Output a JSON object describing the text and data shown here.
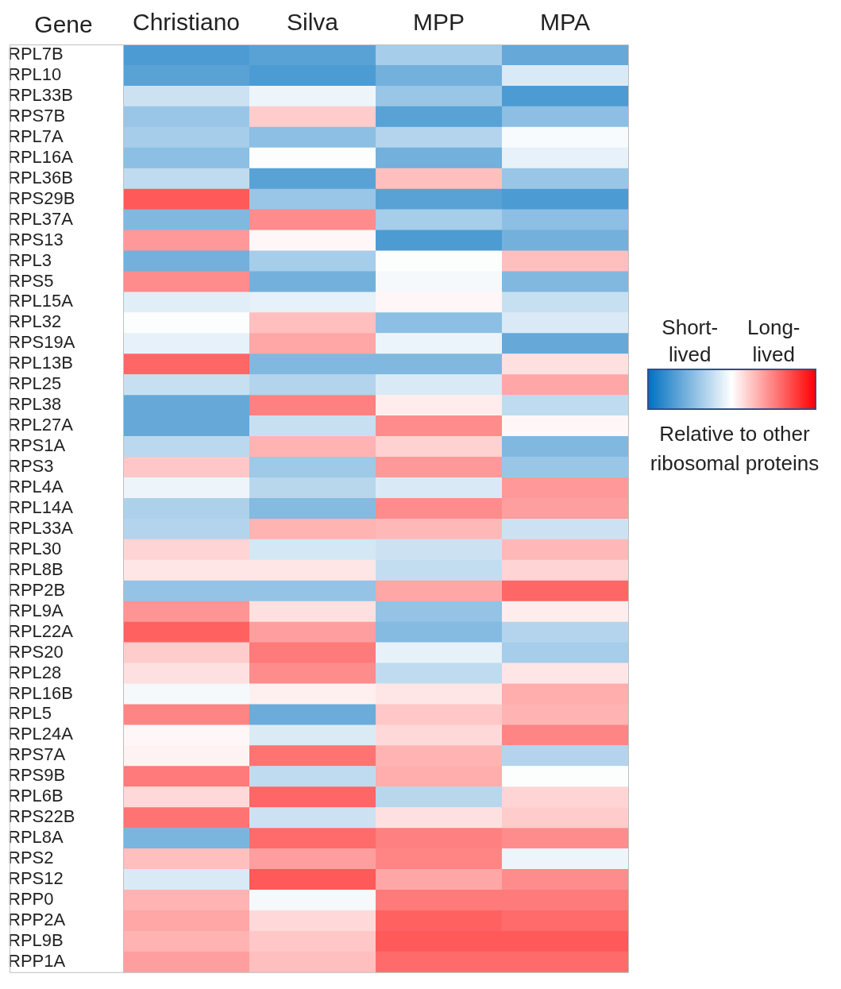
{
  "chart_data": {
    "type": "heatmap",
    "ylabel": "Gene",
    "clabel": "Relative to other ribosomal proteins",
    "categories": [
      "Christiano",
      "Silva",
      "MPP",
      "MPA"
    ],
    "y_categories": [
      "RPL7B",
      "RPL10",
      "RPL33B",
      "RPS7B",
      "RPL7A",
      "RPL16A",
      "RPL36B",
      "RPS29B",
      "RPL37A",
      "RPS13",
      "RPL3",
      "RPS5",
      "RPL15A",
      "RPL32",
      "RPS19A",
      "RPL13B",
      "RPL25",
      "RPL38",
      "RPL27A",
      "RPS1A",
      "RPS3",
      "RPL4A",
      "RPL14A",
      "RPL33A",
      "RPL30",
      "RPL8B",
      "RPP2B",
      "RPL9A",
      "RPL22A",
      "RPS20",
      "RPL28",
      "RPL16B",
      "RPL5",
      "RPL24A",
      "RPS7A",
      "RPS9B",
      "RPL6B",
      "RPS22B",
      "RPL8A",
      "RPS2",
      "RPS12",
      "RPP0",
      "RPP2A",
      "RPL9B",
      "RPP1A"
    ],
    "cells": [
      [
        -0.7,
        -0.65,
        -0.35,
        -0.6
      ],
      [
        -0.65,
        -0.7,
        -0.55,
        -0.15
      ],
      [
        -0.2,
        -0.07,
        -0.4,
        -0.7
      ],
      [
        -0.4,
        0.2,
        -0.65,
        -0.45
      ],
      [
        -0.35,
        -0.45,
        -0.3,
        -0.03
      ],
      [
        -0.45,
        -0.01,
        -0.55,
        -0.1
      ],
      [
        -0.25,
        -0.65,
        0.25,
        -0.4
      ],
      [
        0.65,
        -0.4,
        -0.65,
        -0.7
      ],
      [
        -0.5,
        0.45,
        -0.35,
        -0.45
      ],
      [
        0.4,
        0.03,
        -0.7,
        -0.55
      ],
      [
        -0.55,
        -0.35,
        -0.01,
        0.25
      ],
      [
        0.45,
        -0.55,
        -0.04,
        -0.5
      ],
      [
        -0.12,
        -0.1,
        0.03,
        -0.22
      ],
      [
        -0.01,
        0.25,
        -0.45,
        -0.15
      ],
      [
        -0.1,
        0.35,
        -0.08,
        -0.6
      ],
      [
        0.6,
        -0.5,
        -0.5,
        0.12
      ],
      [
        -0.22,
        -0.3,
        -0.15,
        0.35
      ],
      [
        -0.6,
        0.5,
        0.07,
        -0.25
      ],
      [
        -0.6,
        -0.22,
        0.45,
        0.03
      ],
      [
        -0.27,
        0.3,
        0.18,
        -0.5
      ],
      [
        0.22,
        -0.38,
        0.4,
        -0.4
      ],
      [
        -0.07,
        -0.28,
        -0.15,
        0.4
      ],
      [
        -0.32,
        -0.48,
        0.45,
        0.38
      ],
      [
        -0.3,
        0.3,
        0.28,
        -0.2
      ],
      [
        0.17,
        -0.17,
        -0.2,
        0.28
      ],
      [
        0.1,
        0.1,
        -0.24,
        0.17
      ],
      [
        -0.42,
        -0.42,
        0.35,
        0.6
      ],
      [
        0.42,
        0.12,
        -0.42,
        0.07
      ],
      [
        0.62,
        0.38,
        -0.48,
        -0.3
      ],
      [
        0.2,
        0.52,
        -0.1,
        -0.35
      ],
      [
        0.12,
        0.45,
        -0.25,
        0.1
      ],
      [
        -0.04,
        0.06,
        0.1,
        0.32
      ],
      [
        0.48,
        -0.58,
        0.22,
        0.3
      ],
      [
        0.03,
        -0.14,
        0.15,
        0.48
      ],
      [
        0.05,
        0.55,
        0.3,
        -0.3
      ],
      [
        0.52,
        -0.25,
        0.32,
        -0.01
      ],
      [
        0.15,
        0.6,
        -0.28,
        0.17
      ],
      [
        0.55,
        -0.2,
        0.12,
        0.2
      ],
      [
        -0.52,
        0.58,
        0.5,
        0.45
      ],
      [
        0.25,
        0.38,
        0.48,
        -0.07
      ],
      [
        -0.15,
        0.65,
        0.35,
        0.45
      ],
      [
        0.3,
        -0.04,
        0.52,
        0.52
      ],
      [
        0.35,
        0.15,
        0.62,
        0.58
      ],
      [
        0.3,
        0.22,
        0.65,
        0.65
      ],
      [
        0.38,
        0.25,
        0.58,
        0.58
      ]
    ],
    "clim": [
      -1,
      1
    ],
    "cticks": [
      {
        "value": -0.5,
        "label": "Short-lived"
      },
      {
        "value": 0.5,
        "label": "Long-lived"
      }
    ]
  }
}
